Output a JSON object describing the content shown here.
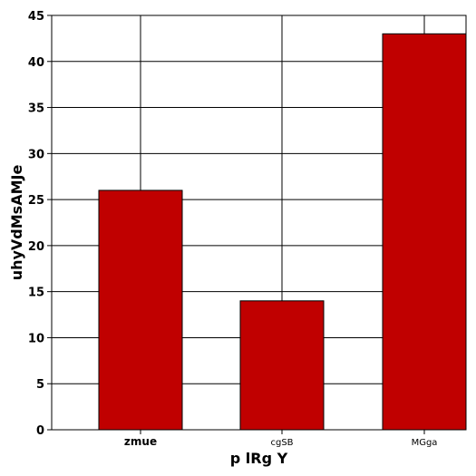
{
  "chart_data": {
    "type": "bar",
    "categories": [
      "zmue",
      "cgSB",
      "MGga"
    ],
    "values": [
      26,
      14,
      43
    ],
    "title": "",
    "xlabel": "p lRg Y",
    "ylabel": "uhyVdMsAMJe",
    "ylim": [
      0,
      45
    ],
    "yticks": [
      0,
      5,
      10,
      15,
      20,
      25,
      30,
      35,
      40,
      45
    ],
    "bar_color": "#c00000",
    "grid": true,
    "legend": "none"
  }
}
